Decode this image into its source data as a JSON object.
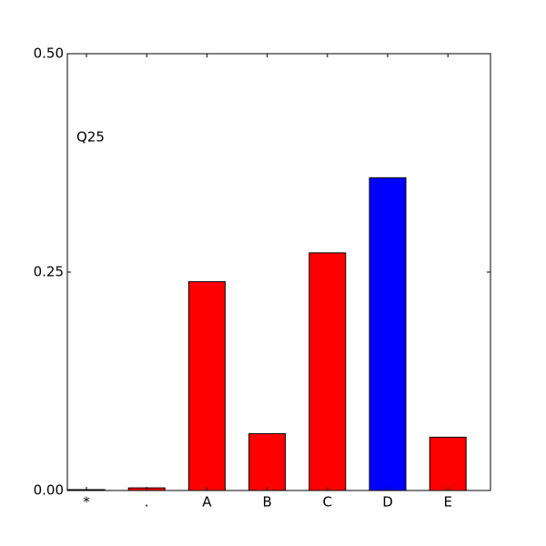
{
  "chart_data": {
    "type": "bar",
    "annotation": "Q25",
    "categories": [
      "*",
      ".",
      "A",
      "B",
      "C",
      "D",
      "E"
    ],
    "values": [
      0.001,
      0.003,
      0.239,
      0.065,
      0.272,
      0.358,
      0.061
    ],
    "colors": [
      "#ff0000",
      "#ff0000",
      "#ff0000",
      "#ff0000",
      "#ff0000",
      "#0000ff",
      "#ff0000"
    ],
    "ylim": [
      0,
      0.5
    ],
    "yticks": [
      {
        "value": 0,
        "label": "0.00"
      },
      {
        "value": 0.25,
        "label": "0.25"
      },
      {
        "value": 0.5,
        "label": "0.50"
      }
    ],
    "grid": false
  }
}
